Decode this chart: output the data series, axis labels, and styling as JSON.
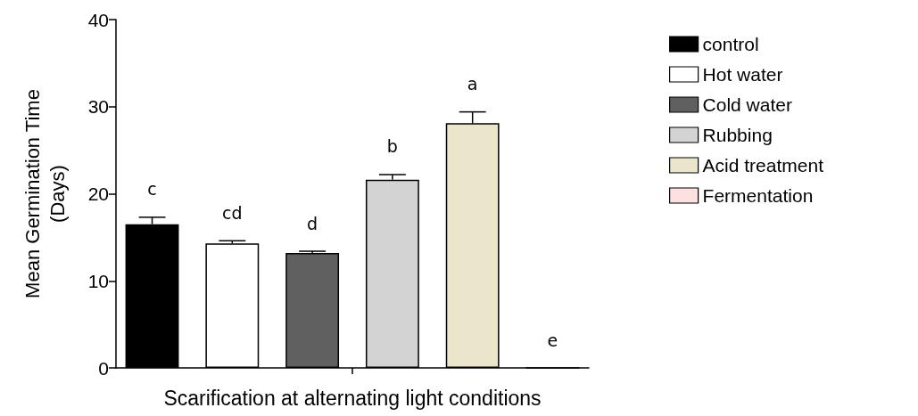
{
  "chart_data": {
    "type": "bar",
    "xlabel": "Scarification at alternating light conditions",
    "ylabel": "Mean Germination Time (Days)",
    "categories": [
      null
    ],
    "series": [
      {
        "name": "control",
        "color": "#000000",
        "values": [
          16.5
        ],
        "errors": [
          0.8
        ]
      },
      {
        "name": "Hot water",
        "color": "#ffffff",
        "values": [
          14.3
        ],
        "errors": [
          0.3
        ]
      },
      {
        "name": "Cold water",
        "color": "#606060",
        "values": [
          13.2
        ],
        "errors": [
          0.2
        ]
      },
      {
        "name": "Rubbing",
        "color": "#d3d3d3",
        "values": [
          21.6
        ],
        "errors": [
          0.6
        ]
      },
      {
        "name": "Acid treatment",
        "color": "#ebe5cc",
        "values": [
          28.1
        ],
        "errors": [
          1.3
        ]
      },
      {
        "name": "Fermentation",
        "color": "#fde0e0",
        "values": [
          0
        ],
        "errors": [
          0
        ]
      }
    ],
    "annotations": [
      "c",
      "cd",
      "d",
      "b",
      "a",
      "e"
    ],
    "ylim": [
      0,
      40
    ],
    "yticks": [
      0,
      10,
      20,
      30,
      40
    ],
    "grid": false,
    "legend": "right"
  }
}
